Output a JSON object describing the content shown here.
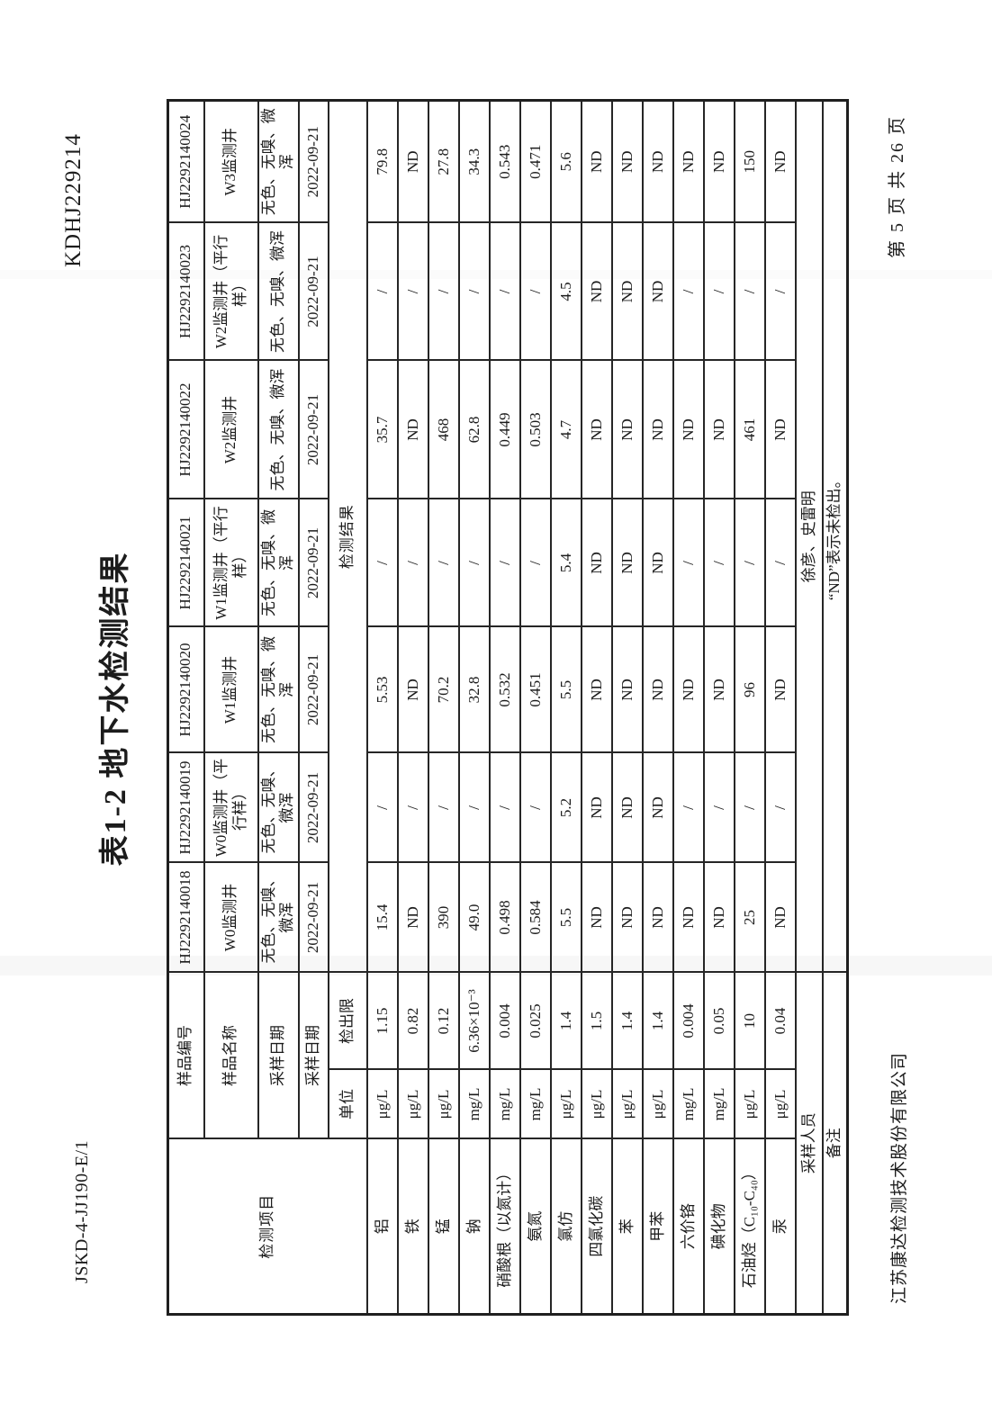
{
  "page": {
    "doc_number": "KDHJ229214",
    "form_code": "JSKD-4-JJ190-E/1",
    "title": "表1-2 地下水检测结果",
    "page_info": "第 5 页 共 26 页",
    "company_footer": "江苏康达检测技术股份有限公司"
  },
  "table": {
    "corner_label": "检测项目",
    "unit_header": "单位",
    "limit_header": "检出限",
    "results_header": "检测结果",
    "header_rows": [
      {
        "label": "样品编号",
        "values": [
          "HJ2292140018",
          "HJ2292140019",
          "HJ2292140020",
          "HJ2292140021",
          "HJ2292140022",
          "HJ2292140023",
          "HJ2292140024"
        ]
      },
      {
        "label": "样品名称",
        "values": [
          "W0监测井",
          "W0监测井（平行样）",
          "W1监测井",
          "W1监测井（平行样）",
          "W2监测井",
          "W2监测井（平行样）",
          "W3监测井"
        ]
      },
      {
        "label": "采样日期",
        "values": [
          "无色、无嗅、微浑",
          "无色、无嗅、微浑",
          "无色、无嗅、微浑",
          "无色、无嗅、微浑",
          "无色、无嗅、微浑",
          "无色、无嗅、微浑",
          "无色、无嗅、微浑"
        ]
      },
      {
        "label": "采样日期",
        "values": [
          "2022-09-21",
          "2022-09-21",
          "2022-09-21",
          "2022-09-21",
          "2022-09-21",
          "2022-09-21",
          "2022-09-21"
        ]
      }
    ],
    "parameters": [
      {
        "name": "铝",
        "unit": "μg/L",
        "limit": "1.15",
        "values": [
          "15.4",
          "/",
          "5.53",
          "/",
          "35.7",
          "/",
          "79.8"
        ]
      },
      {
        "name": "铁",
        "unit": "μg/L",
        "limit": "0.82",
        "values": [
          "ND",
          "/",
          "ND",
          "/",
          "ND",
          "/",
          "ND"
        ]
      },
      {
        "name": "锰",
        "unit": "μg/L",
        "limit": "0.12",
        "values": [
          "390",
          "/",
          "70.2",
          "/",
          "468",
          "/",
          "27.8"
        ]
      },
      {
        "name": "钠",
        "unit": "mg/L",
        "limit": "6.36×10⁻³",
        "values": [
          "49.0",
          "/",
          "32.8",
          "/",
          "62.8",
          "/",
          "34.3"
        ]
      },
      {
        "name": "硝酸根（以氮计）",
        "unit": "mg/L",
        "limit": "0.004",
        "values": [
          "0.498",
          "/",
          "0.532",
          "/",
          "0.449",
          "/",
          "0.543"
        ]
      },
      {
        "name": "氨氮",
        "unit": "mg/L",
        "limit": "0.025",
        "values": [
          "0.584",
          "/",
          "0.451",
          "/",
          "0.503",
          "/",
          "0.471"
        ]
      },
      {
        "name": "氯仿",
        "unit": "μg/L",
        "limit": "1.4",
        "values": [
          "5.5",
          "5.2",
          "5.5",
          "5.4",
          "4.7",
          "4.5",
          "5.6"
        ]
      },
      {
        "name": "四氯化碳",
        "unit": "μg/L",
        "limit": "1.5",
        "values": [
          "ND",
          "ND",
          "ND",
          "ND",
          "ND",
          "ND",
          "ND"
        ]
      },
      {
        "name": "苯",
        "unit": "μg/L",
        "limit": "1.4",
        "values": [
          "ND",
          "ND",
          "ND",
          "ND",
          "ND",
          "ND",
          "ND"
        ]
      },
      {
        "name": "甲苯",
        "unit": "μg/L",
        "limit": "1.4",
        "values": [
          "ND",
          "ND",
          "ND",
          "ND",
          "ND",
          "ND",
          "ND"
        ]
      },
      {
        "name": "六价铬",
        "unit": "mg/L",
        "limit": "0.004",
        "values": [
          "ND",
          "/",
          "ND",
          "/",
          "ND",
          "/",
          "ND"
        ]
      },
      {
        "name": "碘化物",
        "unit": "mg/L",
        "limit": "0.05",
        "values": [
          "ND",
          "/",
          "ND",
          "/",
          "ND",
          "/",
          "ND"
        ]
      },
      {
        "name": "石油烃（C₁₀-C₄₀）",
        "unit": "μg/L",
        "limit": "10",
        "values": [
          "25",
          "/",
          "96",
          "/",
          "461",
          "/",
          "150"
        ]
      },
      {
        "name": "汞",
        "unit": "μg/L",
        "limit": "0.04",
        "values": [
          "ND",
          "/",
          "ND",
          "/",
          "ND",
          "/",
          "ND"
        ]
      }
    ],
    "footer_rows": [
      {
        "label": "采样人员",
        "value": "徐彦、史雷明"
      },
      {
        "label": "备注",
        "value": "“ND”表示未检出。"
      }
    ]
  }
}
